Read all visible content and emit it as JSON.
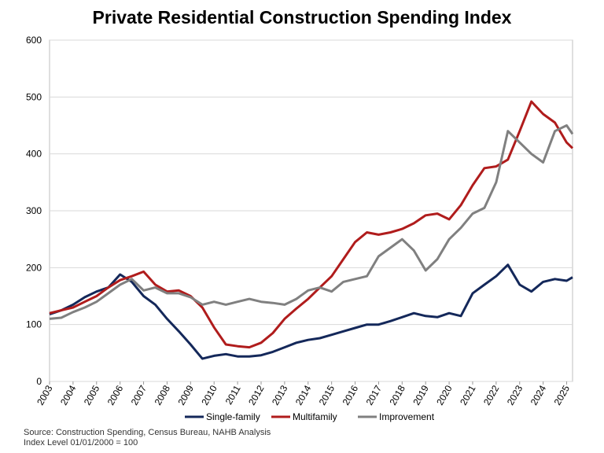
{
  "chart_data": {
    "type": "line",
    "title": "Private Residential Construction Spending Index",
    "source": "Source: Construction Spending, Census Bureau, NAHB Analysis",
    "note": "Index Level 01/01/2000 = 100",
    "x": [
      2003,
      2003.5,
      2004,
      2004.5,
      2005,
      2005.5,
      2006,
      2006.5,
      2007,
      2007.5,
      2008,
      2008.5,
      2009,
      2009.5,
      2010,
      2010.5,
      2011,
      2011.5,
      2012,
      2012.5,
      2013,
      2013.5,
      2014,
      2014.5,
      2015,
      2015.5,
      2016,
      2016.5,
      2017,
      2017.5,
      2018,
      2018.5,
      2019,
      2019.5,
      2020,
      2020.5,
      2021,
      2021.5,
      2022,
      2022.5,
      2023,
      2023.5,
      2024,
      2024.5,
      2025,
      2025.25
    ],
    "series": [
      {
        "name": "Single-family",
        "color": "#14285a",
        "values": [
          118,
          125,
          135,
          148,
          158,
          165,
          188,
          175,
          150,
          135,
          110,
          88,
          65,
          40,
          45,
          48,
          44,
          44,
          46,
          52,
          60,
          68,
          73,
          76,
          82,
          88,
          94,
          100,
          100,
          106,
          113,
          120,
          115,
          113,
          120,
          115,
          155,
          170,
          185,
          205,
          170,
          158,
          175,
          180,
          177,
          183
        ]
      },
      {
        "name": "Multifamily",
        "color": "#b01c1c",
        "values": [
          120,
          125,
          130,
          140,
          150,
          165,
          178,
          185,
          193,
          170,
          158,
          160,
          150,
          130,
          95,
          65,
          62,
          60,
          68,
          85,
          110,
          128,
          145,
          165,
          185,
          215,
          245,
          262,
          258,
          262,
          268,
          278,
          292,
          295,
          285,
          310,
          345,
          375,
          378,
          390,
          440,
          492,
          470,
          455,
          420,
          410
        ]
      },
      {
        "name": "Improvement",
        "color": "#808080",
        "values": [
          110,
          112,
          122,
          130,
          140,
          155,
          170,
          180,
          160,
          165,
          155,
          155,
          148,
          135,
          140,
          135,
          140,
          145,
          140,
          138,
          135,
          145,
          160,
          165,
          158,
          175,
          180,
          185,
          220,
          235,
          250,
          230,
          195,
          215,
          250,
          270,
          295,
          305,
          350,
          440,
          420,
          400,
          385,
          440,
          450,
          435
        ]
      }
    ],
    "xlim": [
      2003,
      2025.25
    ],
    "xticks": [
      2003,
      2004,
      2005,
      2006,
      2007,
      2008,
      2009,
      2010,
      2011,
      2012,
      2013,
      2014,
      2015,
      2016,
      2017,
      2018,
      2019,
      2020,
      2021,
      2022,
      2023,
      2024,
      2025
    ],
    "ylim": [
      0,
      600
    ],
    "yticks": [
      0,
      100,
      200,
      300,
      400,
      500,
      600
    ],
    "grid": true
  }
}
